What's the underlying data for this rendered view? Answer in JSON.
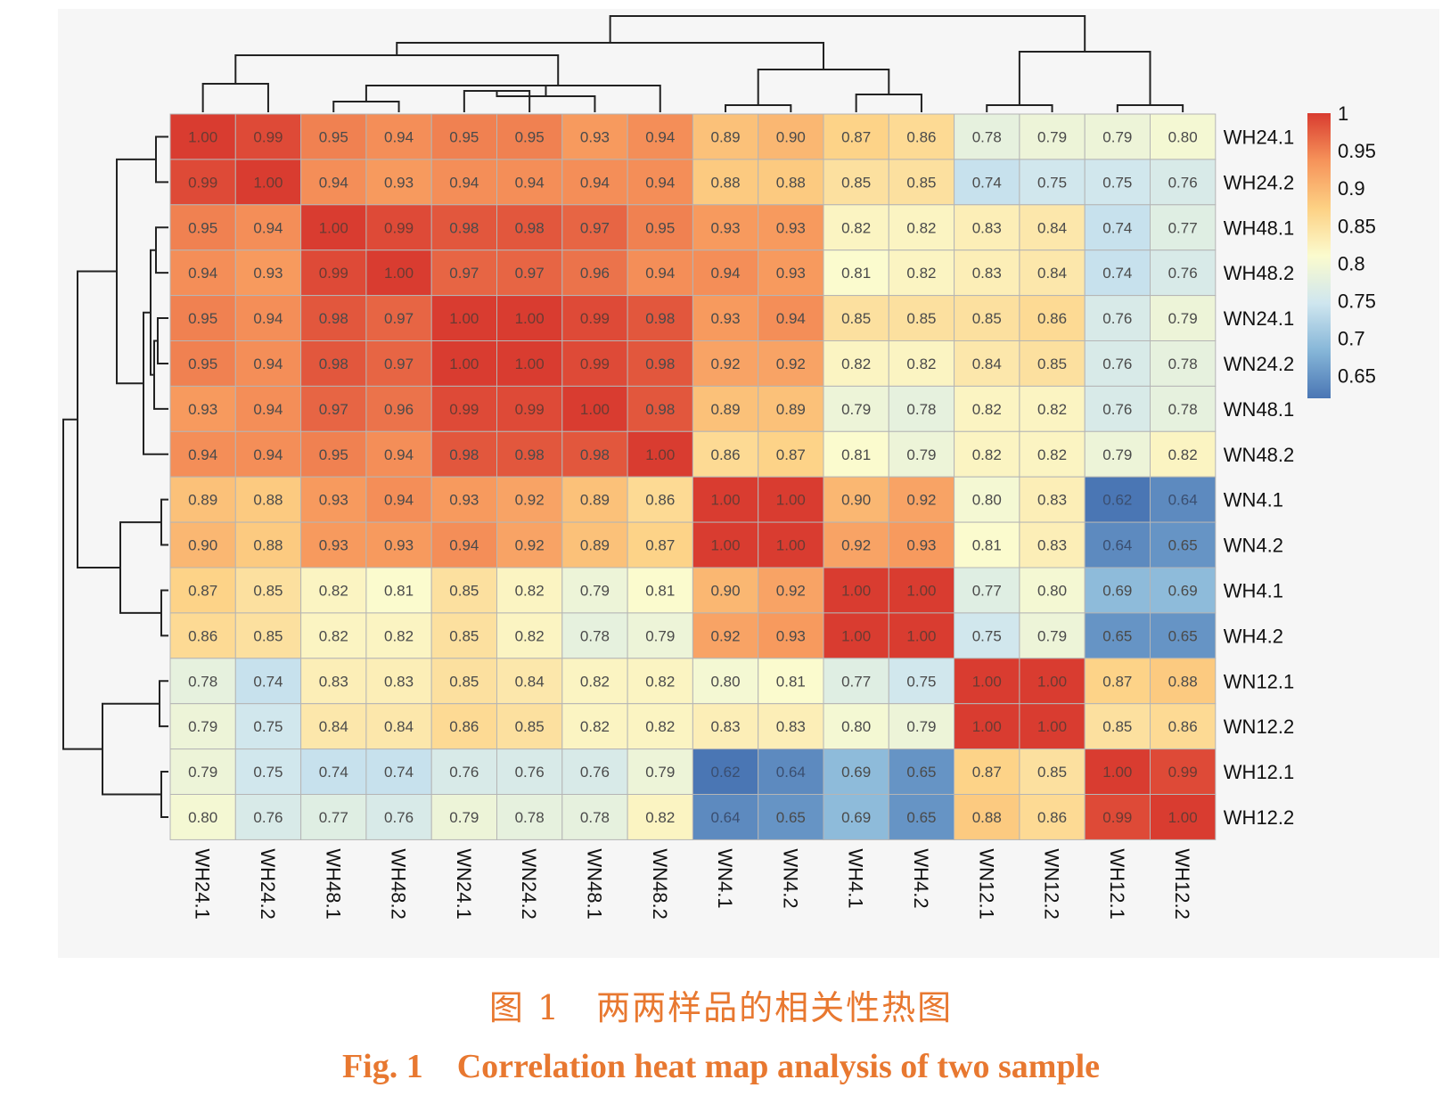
{
  "caption": {
    "cn": "图 1　两两样品的相关性热图",
    "en": "Fig. 1　Correlation heat map analysis of two sample"
  },
  "chart_data": {
    "type": "heatmap",
    "title": "",
    "rows": [
      "WH24.1",
      "WH24.2",
      "WH48.1",
      "WH48.2",
      "WN24.1",
      "WN24.2",
      "WN48.1",
      "WN48.2",
      "WN4.1",
      "WN4.2",
      "WH4.1",
      "WH4.2",
      "WN12.1",
      "WN12.2",
      "WH12.1",
      "WH12.2"
    ],
    "columns": [
      "WH24.1",
      "WH24.2",
      "WH48.1",
      "WH48.2",
      "WN24.1",
      "WN24.2",
      "WN48.1",
      "WN48.2",
      "WN4.1",
      "WN4.2",
      "WH4.1",
      "WH4.2",
      "WN12.1",
      "WN12.2",
      "WH12.1",
      "WH12.2"
    ],
    "cell_labels": [
      [
        "1.00",
        "0.99",
        "0.95",
        "0.94",
        "0.95",
        "0.95",
        "0.93",
        "0.94",
        "0.89",
        "0.90",
        "0.87",
        "0.86",
        "0.78",
        "0.79",
        "0.79",
        "0.80"
      ],
      [
        "0.99",
        "1.00",
        "0.94",
        "0.93",
        "0.94",
        "0.94",
        "0.94",
        "0.94",
        "0.88",
        "0.88",
        "0.85",
        "0.85",
        "0.74",
        "0.75",
        "0.75",
        "0.76"
      ],
      [
        "0.95",
        "0.94",
        "1.00",
        "0.99",
        "0.98",
        "0.98",
        "0.97",
        "0.95",
        "0.93",
        "0.93",
        "0.82",
        "0.82",
        "0.83",
        "0.84",
        "0.74",
        "0.77"
      ],
      [
        "0.94",
        "0.93",
        "0.99",
        "1.00",
        "0.97",
        "0.97",
        "0.96",
        "0.94",
        "0.94",
        "0.93",
        "0.81",
        "0.82",
        "0.83",
        "0.84",
        "0.74",
        "0.76"
      ],
      [
        "0.95",
        "0.94",
        "0.98",
        "0.97",
        "1.00",
        "1.00",
        "0.99",
        "0.98",
        "0.93",
        "0.94",
        "0.85",
        "0.85",
        "0.85",
        "0.86",
        "0.76",
        "0.79"
      ],
      [
        "0.95",
        "0.94",
        "0.98",
        "0.97",
        "1.00",
        "1.00",
        "0.99",
        "0.98",
        "0.92",
        "0.92",
        "0.82",
        "0.82",
        "0.84",
        "0.85",
        "0.76",
        "0.78"
      ],
      [
        "0.93",
        "0.94",
        "0.97",
        "0.96",
        "0.99",
        "0.99",
        "1.00",
        "0.98",
        "0.89",
        "0.89",
        "0.79",
        "0.78",
        "0.82",
        "0.82",
        "0.76",
        "0.78"
      ],
      [
        "0.94",
        "0.94",
        "0.95",
        "0.94",
        "0.98",
        "0.98",
        "0.98",
        "1.00",
        "0.86",
        "0.87",
        "0.81",
        "0.79",
        "0.82",
        "0.82",
        "0.79",
        "0.82"
      ],
      [
        "0.89",
        "0.88",
        "0.93",
        "0.94",
        "0.93",
        "0.92",
        "0.89",
        "0.86",
        "1.00",
        "1.00",
        "0.90",
        "0.92",
        "0.80",
        "0.83",
        "0.62",
        "0.64"
      ],
      [
        "0.90",
        "0.88",
        "0.93",
        "0.93",
        "0.94",
        "0.92",
        "0.89",
        "0.87",
        "1.00",
        "1.00",
        "0.92",
        "0.93",
        "0.81",
        "0.83",
        "0.64",
        "0.65"
      ],
      [
        "0.87",
        "0.85",
        "0.82",
        "0.81",
        "0.85",
        "0.82",
        "0.79",
        "0.81",
        "0.90",
        "0.92",
        "1.00",
        "1.00",
        "0.77",
        "0.80",
        "0.69",
        "0.69"
      ],
      [
        "0.86",
        "0.85",
        "0.82",
        "0.82",
        "0.85",
        "0.82",
        "0.78",
        "0.79",
        "0.92",
        "0.93",
        "1.00",
        "1.00",
        "0.75",
        "0.79",
        "0.65",
        "0.65"
      ],
      [
        "0.78",
        "0.74",
        "0.83",
        "0.83",
        "0.85",
        "0.84",
        "0.82",
        "0.82",
        "0.80",
        "0.81",
        "0.77",
        "0.75",
        "1.00",
        "1.00",
        "0.87",
        "0.88"
      ],
      [
        "0.79",
        "0.75",
        "0.84",
        "0.84",
        "0.86",
        "0.85",
        "0.82",
        "0.82",
        "0.83",
        "0.83",
        "0.80",
        "0.79",
        "1.00",
        "1.00",
        "0.85",
        "0.86"
      ],
      [
        "0.79",
        "0.75",
        "0.74",
        "0.74",
        "0.76",
        "0.76",
        "0.76",
        "0.79",
        "0.62",
        "0.64",
        "0.69",
        "0.65",
        "0.87",
        "0.85",
        "1.00",
        "0.99"
      ],
      [
        "0.80",
        "0.76",
        "0.77",
        "0.76",
        "0.79",
        "0.78",
        "0.78",
        "0.82",
        "0.64",
        "0.65",
        "0.69",
        "0.65",
        "0.88",
        "0.86",
        "0.99",
        "1.00"
      ]
    ],
    "colorbar": {
      "ticks": [
        "1",
        "0.95",
        "0.9",
        "0.85",
        "0.8",
        "0.75",
        "0.7",
        "0.65"
      ],
      "tick_values": [
        1.0,
        0.95,
        0.9,
        0.85,
        0.8,
        0.75,
        0.7,
        0.65
      ],
      "range": [
        0.62,
        1.0
      ],
      "colors": [
        "#4a76b4",
        "#86b6d8",
        "#cfe6ef",
        "#fbfbce",
        "#fdd184",
        "#f6935a",
        "#d93c30"
      ]
    },
    "dendrogram": "hierarchical clustering on rows and columns; groups WH24 / WH48 / WN24 / WN48 vs WN4 / WH4 vs WN12 / WH12"
  }
}
